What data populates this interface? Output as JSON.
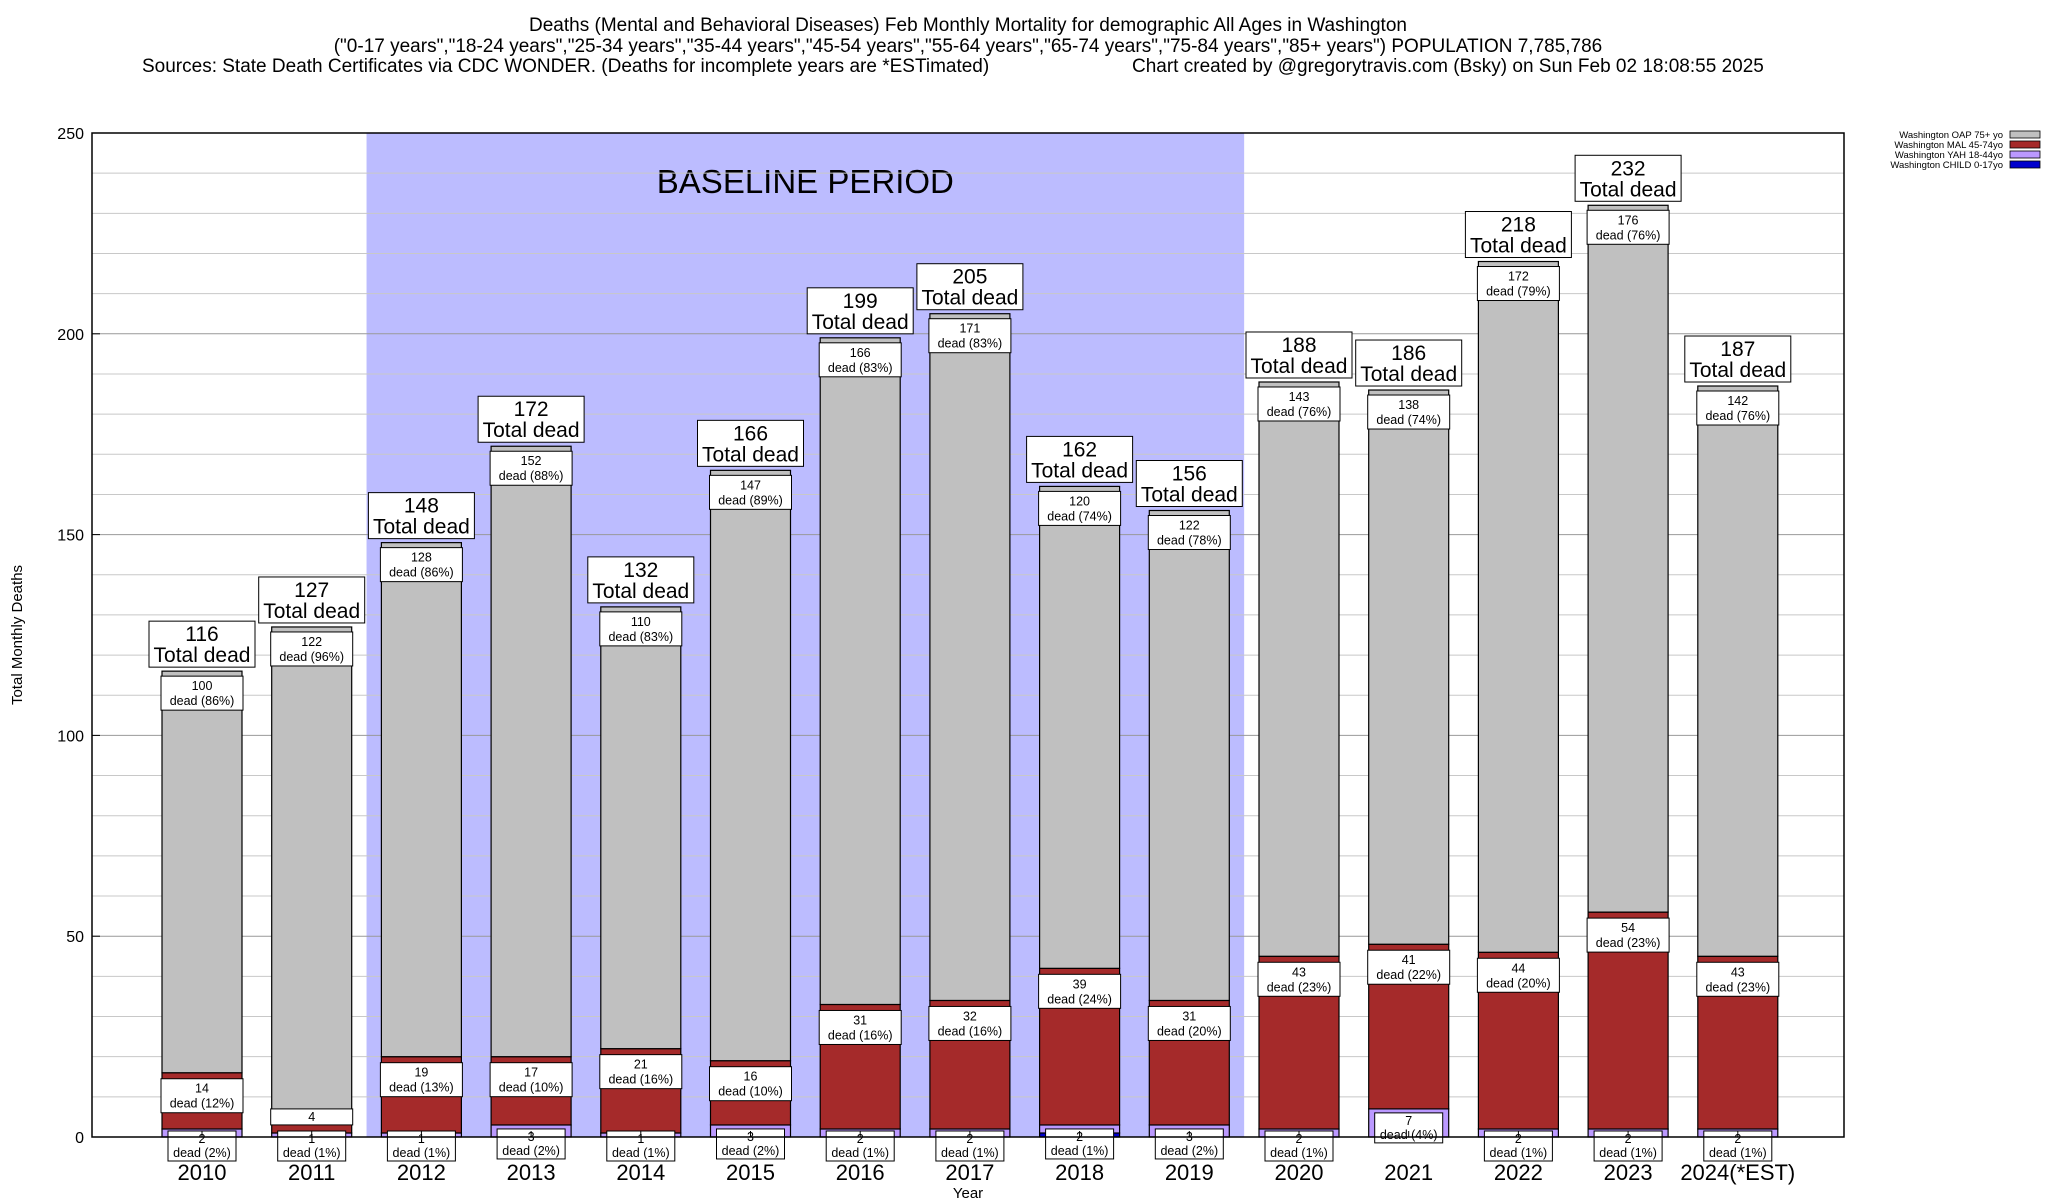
{
  "title_lines": [
    "Deaths (Mental and Behavioral Diseases) Feb Monthly Mortality for demographic All Ages in Washington",
    "(\"0-17 years\",\"18-24 years\",\"25-34 years\",\"35-44 years\",\"45-54 years\",\"55-64 years\",\"65-74 years\",\"75-84 years\",\"85+ years\") POPULATION 7,785,786",
    "Sources: State Death Certificates via CDC WONDER. (Deaths for incomplete years are *ESTimated)",
    "Chart created by @gregorytravis.com (Bsky) on Sun Feb 02 18:08:55 2025"
  ],
  "chart_data": {
    "type": "bar",
    "stacked": true,
    "xlabel": "Year",
    "ylabel": "Total Monthly Deaths",
    "ylim": [
      0,
      250
    ],
    "yticks": [
      0,
      50,
      100,
      150,
      200,
      250
    ],
    "grid": true,
    "legend_position": "top-right",
    "categories": [
      "2010",
      "2011",
      "2012",
      "2013",
      "2014",
      "2015",
      "2016",
      "2017",
      "2018",
      "2019",
      "2020",
      "2021",
      "2022",
      "2023",
      "2024(*EST)"
    ],
    "series": [
      {
        "name": "Washington CHILD 0-17yo",
        "color": "#0000cc",
        "values": [
          0,
          0,
          0,
          0,
          0,
          0,
          0,
          0,
          1,
          0,
          0,
          0,
          0,
          0,
          0
        ]
      },
      {
        "name": "Washington YAH 18-44yo",
        "color": "#bb99ff",
        "values": [
          2,
          1,
          1,
          3,
          1,
          3,
          2,
          2,
          2,
          3,
          2,
          7,
          2,
          2,
          2
        ]
      },
      {
        "name": "Washington MAL 45-74yo",
        "color": "#a52a2a",
        "values": [
          14,
          4,
          19,
          17,
          21,
          16,
          31,
          32,
          39,
          31,
          43,
          41,
          44,
          54,
          43
        ]
      },
      {
        "name": "Washington OAP 75+ yo",
        "color": "#c0c0c0",
        "values": [
          100,
          122,
          128,
          152,
          110,
          147,
          166,
          171,
          120,
          122,
          143,
          138,
          172,
          176,
          142
        ]
      }
    ],
    "totals": [
      116,
      127,
      148,
      172,
      132,
      166,
      199,
      205,
      162,
      156,
      188,
      186,
      218,
      232,
      187
    ],
    "total_suffix": "Total dead",
    "oap_labels": [
      "dead (86%)",
      "dead (96%)",
      "dead (86%)",
      "dead (88%)",
      "dead (83%)",
      "dead (89%)",
      "dead (83%)",
      "dead (83%)",
      "dead (74%)",
      "dead (78%)",
      "dead (76%)",
      "dead (74%)",
      "dead (79%)",
      "dead (76%)",
      "dead (76%)"
    ],
    "mal_labels": [
      "dead (12%)",
      "",
      "dead (13%)",
      "dead (10%)",
      "dead (16%)",
      "dead (10%)",
      "dead (16%)",
      "dead (16%)",
      "dead (24%)",
      "dead (20%)",
      "dead (23%)",
      "dead (22%)",
      "dead (20%)",
      "dead (23%)",
      "dead (23%)"
    ],
    "yah_labels": [
      "dead (2%)",
      "dead (1%)",
      "dead (1%)",
      "dead (2%)",
      "dead (1%)",
      "dead (2%)",
      "dead (1%)",
      "dead (1%)",
      "dead (1%)",
      "dead (2%)",
      "dead (1%)",
      "dead (4%)",
      "dead (1%)",
      "dead (1%)",
      "dead (1%)"
    ],
    "annotations": [
      {
        "text": "BASELINE PERIOD",
        "from": "2012",
        "to": "2019"
      }
    ]
  }
}
